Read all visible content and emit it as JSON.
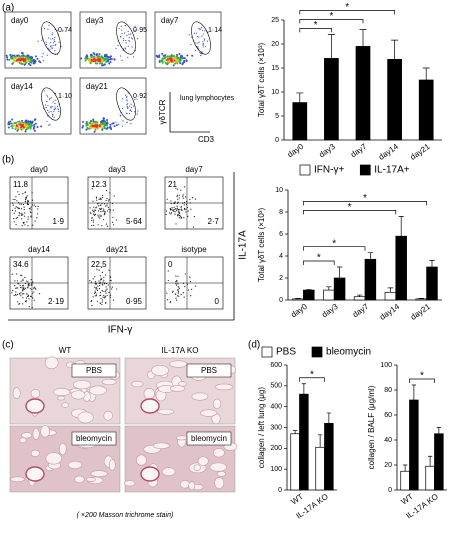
{
  "panels": [
    "(a)",
    "(b)",
    "(c)",
    "(d)"
  ],
  "flow_a": {
    "plots": [
      {
        "title": "day0",
        "percent": "0·74"
      },
      {
        "title": "day3",
        "percent": "0·95"
      },
      {
        "title": "day7",
        "percent": "1·14"
      },
      {
        "title": "day14",
        "percent": "1·10"
      },
      {
        "title": "day21",
        "percent": "0·92"
      }
    ],
    "y_axis": "γδTCR",
    "x_axis": "CD3",
    "gate": "lung lymphocytes"
  },
  "flow_b": {
    "plots": [
      {
        "title": "day0",
        "upper_left": "11.8",
        "lower_right": "1·9"
      },
      {
        "title": "day3",
        "upper_left": "12.3",
        "lower_right": "5·64"
      },
      {
        "title": "day7",
        "upper_left": "21",
        "lower_right": "2·7"
      },
      {
        "title": "day14",
        "upper_left": "34.6",
        "lower_right": "2·19"
      },
      {
        "title": "day21",
        "upper_left": "22.5",
        "lower_right": "0·95"
      },
      {
        "title": "isotype",
        "upper_left": "0",
        "lower_right": "0"
      }
    ],
    "y_axis": "IL-17A",
    "x_axis": "IFN-γ"
  },
  "histology": {
    "columns": [
      "WT",
      "IL-17A KO"
    ],
    "rows": [
      "PBS",
      "bleomycin"
    ],
    "caption": "( ×200 Masson trichrome stain)"
  },
  "chart_data": [
    {
      "type": "bar",
      "ylabel": "Total γδT cells (×10³)",
      "categories": [
        "day0",
        "day3",
        "day7",
        "day14",
        "day21"
      ],
      "series": [
        {
          "color": "#000000",
          "values": [
            7.8,
            17,
            19.5,
            16.8,
            12.5
          ],
          "errors": [
            2,
            5,
            3.5,
            4,
            2.5
          ]
        }
      ],
      "ylim": [
        0,
        25
      ],
      "yticks": [
        0,
        5,
        10,
        15,
        20,
        25
      ],
      "brackets": [
        {
          "label": "*",
          "between": [
            "day0",
            "day3"
          ]
        },
        {
          "label": "*",
          "between": [
            "day0",
            "day7"
          ]
        },
        {
          "label": "*",
          "between": [
            "day0",
            "day14"
          ]
        }
      ]
    },
    {
      "type": "bar",
      "ylabel": "Total γδT cells (×10³)",
      "categories": [
        "day0",
        "day3",
        "day7",
        "day14",
        "day21"
      ],
      "series": [
        {
          "name": "IFN-γ+",
          "color": "#ffffff",
          "values": [
            0.1,
            0.9,
            0.3,
            0.7,
            0.1
          ],
          "errors": [
            0.05,
            0.3,
            0.15,
            0.4,
            0.05
          ]
        },
        {
          "name": "IL-17A+",
          "color": "#000000",
          "values": [
            0.9,
            2.0,
            3.7,
            5.8,
            3.0
          ],
          "errors": [
            0.05,
            1.0,
            0.6,
            1.8,
            0.6
          ]
        }
      ],
      "ylim": [
        0,
        10
      ],
      "yticks": [
        0,
        2,
        4,
        6,
        8,
        10
      ],
      "brackets": [
        {
          "label": "*",
          "between": [
            "day0",
            "day3"
          ]
        },
        {
          "label": "*",
          "between": [
            "day0",
            "day7"
          ]
        },
        {
          "label": "*",
          "between": [
            "day0",
            "day14"
          ]
        },
        {
          "label": "*",
          "between": [
            "day0",
            "day21"
          ]
        }
      ]
    },
    {
      "type": "bar",
      "ylabel": "collagen / left lung (μg)",
      "categories": [
        "WT",
        "IL-17A KO"
      ],
      "series": [
        {
          "name": "PBS",
          "color": "#ffffff",
          "values": [
            270,
            205
          ],
          "errors": [
            15,
            60
          ]
        },
        {
          "name": "bleomycin",
          "color": "#000000",
          "values": [
            460,
            320
          ],
          "errors": [
            50,
            50
          ]
        }
      ],
      "ylim": [
        0,
        600
      ],
      "yticks": [
        0,
        100,
        200,
        300,
        400,
        500,
        600
      ],
      "brackets": [
        {
          "label": "*",
          "between": [
            "WT",
            "IL-17A KO"
          ]
        }
      ]
    },
    {
      "type": "bar",
      "ylabel": "collagen / BALF (μg/ml)",
      "categories": [
        "WT",
        "IL-17A KO"
      ],
      "series": [
        {
          "color": "#ffffff",
          "values": [
            15,
            19
          ],
          "errors": [
            5,
            8
          ]
        },
        {
          "color": "#000000",
          "values": [
            72,
            45
          ],
          "errors": [
            12,
            5
          ]
        }
      ],
      "ylim": [
        0,
        100
      ],
      "yticks": [
        0,
        20,
        40,
        60,
        80,
        100
      ],
      "brackets": [
        {
          "label": "*",
          "between": [
            "WT",
            "IL-17A KO"
          ]
        }
      ]
    }
  ]
}
